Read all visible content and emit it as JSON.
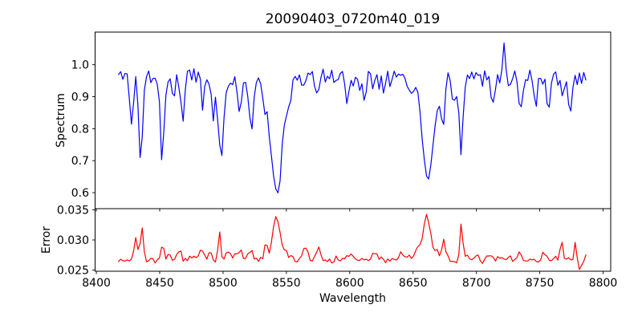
{
  "chart_data": {
    "type": "line",
    "title": "20090403_0720m40_019",
    "xlabel": "Wavelength",
    "xlim": [
      8399,
      8806
    ],
    "xticks": [
      "8400",
      "8450",
      "8500",
      "8550",
      "8600",
      "8650",
      "8700",
      "8750",
      "8800"
    ],
    "xtick_values": [
      8400,
      8450,
      8500,
      8550,
      8600,
      8650,
      8700,
      8750,
      8800
    ],
    "x_data_start": 8417.5,
    "x_data_end": 8787.5,
    "x_sample_step": 1.7,
    "grid": false,
    "legend": "none",
    "panels": [
      {
        "name": "spectrum",
        "ylabel": "Spectrum",
        "color": "#0000ff",
        "ylim": [
          0.55,
          1.102
        ],
        "yticks": [
          {
            "value": 1.0,
            "label": "1.0"
          },
          {
            "value": 0.9,
            "label": "0.9"
          },
          {
            "value": 0.8,
            "label": "0.8"
          },
          {
            "value": 0.7,
            "label": "0.7"
          },
          {
            "value": 0.6,
            "label": "0.6"
          }
        ],
        "continuum_baseline": 0.965,
        "noise_sigma": 0.014,
        "features_note": "absorption dips (negative amplitude) and emission spike (positive) read from plot; columns: center_wavelength, amplitude, gaussian_sigma",
        "features": {
          "columns": [
            "center_wavelength",
            "amplitude",
            "sigma"
          ],
          "rows": [
            [
              8428,
              -0.15,
              1.2
            ],
            [
              8435,
              -0.25,
              1.6
            ],
            [
              8452,
              -0.25,
              1.6
            ],
            [
              8461,
              -0.09,
              1.1
            ],
            [
              8468,
              -0.13,
              1.3
            ],
            [
              8484,
              -0.09,
              1.2
            ],
            [
              8492,
              -0.12,
              1.3
            ],
            [
              8498.5,
              -0.21,
              2.6
            ],
            [
              8498.5,
              -0.035,
              1.2
            ],
            [
              8513,
              -0.12,
              1.4
            ],
            [
              8522,
              -0.17,
              1.6
            ],
            [
              8542,
              -0.28,
              6.0
            ],
            [
              8542,
              -0.1,
              2.2
            ],
            [
              8575,
              -0.06,
              1.5
            ],
            [
              8598,
              -0.08,
              1.5
            ],
            [
              8611,
              -0.07,
              1.5
            ],
            [
              8648,
              -0.06,
              1.5
            ],
            [
              8662,
              -0.245,
              5.0
            ],
            [
              8662,
              -0.09,
              2.0
            ],
            [
              8674,
              -0.15,
              1.2
            ],
            [
              8682,
              -0.1,
              1.2
            ],
            [
              8688,
              -0.26,
              1.4
            ],
            [
              8713,
              -0.07,
              1.2
            ],
            [
              8721,
              0.1,
              1.0
            ],
            [
              8735,
              -0.11,
              1.4
            ],
            [
              8747,
              -0.07,
              1.2
            ],
            [
              8757,
              -0.11,
              1.4
            ],
            [
              8768,
              -0.08,
              1.2
            ],
            [
              8774,
              -0.1,
              1.3
            ]
          ]
        }
      },
      {
        "name": "error",
        "ylabel": "Error",
        "color": "#ff0000",
        "ylim": [
          0.0248,
          0.0352
        ],
        "yticks": [
          {
            "value": 0.035,
            "label": "0.035"
          },
          {
            "value": 0.03,
            "label": "0.030"
          },
          {
            "value": 0.025,
            "label": "0.025"
          }
        ],
        "continuum_baseline": 0.0267,
        "noise_sigma": 0.0003,
        "features_note": "error bumps (positive amplitude peaks) read from plot; columns: center_wavelength, amplitude, gaussian_sigma",
        "features": {
          "columns": [
            "center_wavelength",
            "amplitude",
            "sigma"
          ],
          "rows": [
            [
              8431,
              0.004,
              1.2
            ],
            [
              8436,
              0.0046,
              1.3
            ],
            [
              8452,
              0.0017,
              1.5
            ],
            [
              8466,
              0.0013,
              1.5
            ],
            [
              8482,
              0.0013,
              1.8
            ],
            [
              8490,
              0.0012,
              1.5
            ],
            [
              8497,
              0.0046,
              1.1
            ],
            [
              8505,
              0.0012,
              2.0
            ],
            [
              8513,
              0.0015,
              1.8
            ],
            [
              8522,
              0.0013,
              1.5
            ],
            [
              8534,
              0.002,
              1.5
            ],
            [
              8542,
              0.0072,
              2.6
            ],
            [
              8548,
              0.0015,
              2.0
            ],
            [
              8565,
              0.0026,
              1.6
            ],
            [
              8575,
              0.002,
              1.5
            ],
            [
              8598,
              0.0008,
              2.0
            ],
            [
              8620,
              0.001,
              2.0
            ],
            [
              8640,
              0.0008,
              2.0
            ],
            [
              8655,
              0.0022,
              3.0
            ],
            [
              8661,
              0.0075,
              2.4
            ],
            [
              8668,
              0.0015,
              2.0
            ],
            [
              8674,
              0.0036,
              1.4
            ],
            [
              8688,
              0.0056,
              1.1
            ],
            [
              8700,
              0.0008,
              1.5
            ],
            [
              8734,
              0.0016,
              1.0
            ],
            [
              8754,
              0.0012,
              1.5
            ],
            [
              8767,
              0.0036,
              0.9
            ],
            [
              8778,
              0.0027,
              0.9
            ],
            [
              8781,
              -0.0012,
              1.5
            ]
          ]
        }
      }
    ],
    "colors": {
      "spectrum_line": "#0000ff",
      "error_line": "#ff0000",
      "axes": "#000000",
      "background": "#ffffff"
    }
  }
}
